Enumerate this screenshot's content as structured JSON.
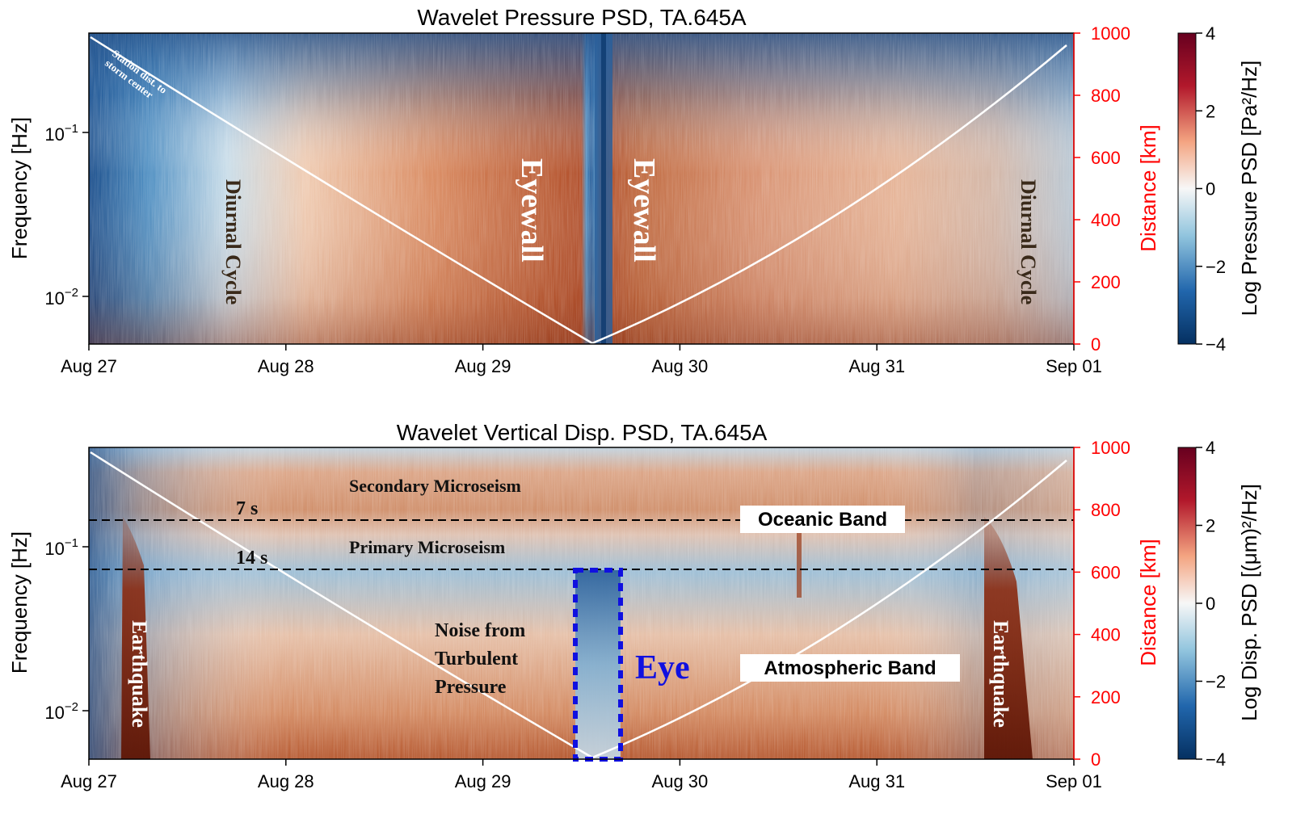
{
  "chart_data": [
    {
      "type": "heatmap",
      "title": "Wavelet Pressure PSD, TA.645A",
      "ylabel": "Frequency [Hz]",
      "y2label": "Distance [km]",
      "colorbar_label": "Log Pressure PSD [Pa²/Hz]",
      "colorbar_ticks": [
        4,
        2,
        0,
        -2,
        -4
      ],
      "colormap": [
        "#053061",
        "#2166ac",
        "#92c5de",
        "#f7f7f7",
        "#f4a582",
        "#b2182b",
        "#67001f"
      ],
      "x_ticks": [
        "Aug 27",
        "Aug 28",
        "Aug 29",
        "Aug 30",
        "Aug 31",
        "Sep 01"
      ],
      "y_ticks": [
        "10^-1",
        "10^-2"
      ],
      "y2_ticks": [
        1000,
        800,
        600,
        400,
        200,
        0
      ],
      "ylim": [
        0.005,
        0.4
      ],
      "y2lim": [
        0,
        1000
      ],
      "log_y": true,
      "distance_curve": {
        "x_days": [
          0,
          2.55,
          5.0
        ],
        "y_km": [
          1000,
          0,
          950
        ]
      },
      "annotations": [
        {
          "text": "Station dist. to storm center",
          "color": "#ffffff"
        },
        {
          "text": "Diurnal Cycle",
          "color": "#3a2a1a"
        },
        {
          "text": "Eyewall",
          "color": "#ffffff"
        },
        {
          "text": "Eyewall",
          "color": "#ffffff"
        },
        {
          "text": "Diurnal Cycle",
          "color": "#3a2a1a"
        }
      ]
    },
    {
      "type": "heatmap",
      "title": "Wavelet Vertical Disp. PSD, TA.645A",
      "ylabel": "Frequency [Hz]",
      "y2label": "Distance [km]",
      "colorbar_label": "Log Disp. PSD [(μm)²/Hz]",
      "colorbar_ticks": [
        4,
        2,
        0,
        -2,
        -4
      ],
      "x_ticks": [
        "Aug 27",
        "Aug 28",
        "Aug 29",
        "Aug 30",
        "Aug 31",
        "Sep 01"
      ],
      "y_ticks": [
        "10^-1",
        "10^-2"
      ],
      "y2_ticks": [
        1000,
        800,
        600,
        400,
        200,
        0
      ],
      "ylim": [
        0.005,
        0.4
      ],
      "y2lim": [
        0,
        1000
      ],
      "log_y": true,
      "reference_lines": [
        {
          "label": "7 s",
          "frequency_hz": 0.1429
        },
        {
          "label": "14 s",
          "frequency_hz": 0.0714
        }
      ],
      "distance_curve": {
        "x_days": [
          0,
          2.55,
          5.0
        ],
        "y_km": [
          1000,
          0,
          950
        ]
      },
      "annotations": [
        {
          "text": "Secondary Microseism"
        },
        {
          "text": "Primary Microseism"
        },
        {
          "text": "Oceanic Band"
        },
        {
          "text": "Atmospheric Band"
        },
        {
          "text": "Earthquake"
        },
        {
          "text": "Earthquake"
        },
        {
          "text": "Noise from Turbulent Pressure"
        },
        {
          "text": "Eye",
          "color": "#1010e0"
        }
      ]
    }
  ]
}
